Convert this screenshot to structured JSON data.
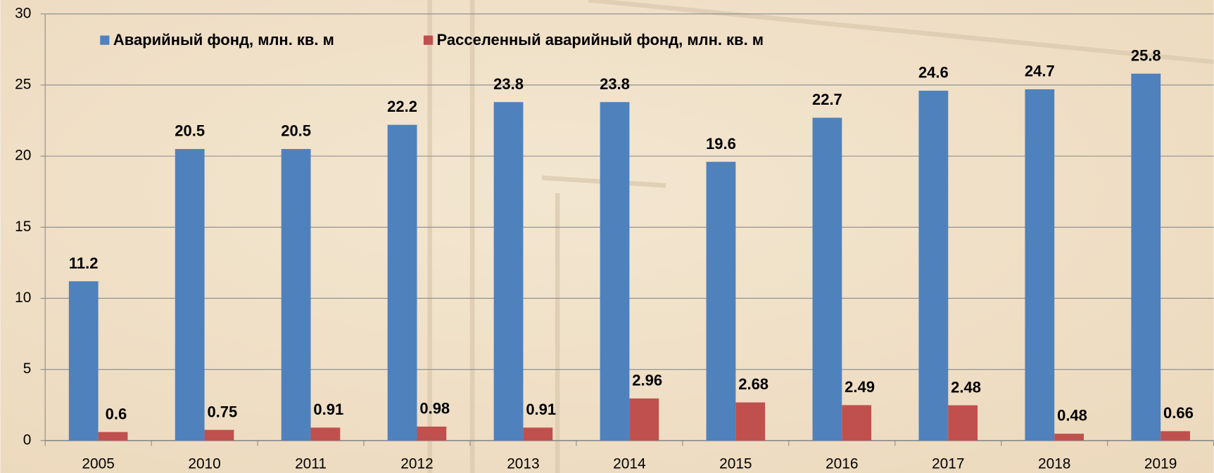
{
  "chart_data": {
    "type": "bar",
    "categories": [
      "2005",
      "2010",
      "2011",
      "2012",
      "2013",
      "2014",
      "2015",
      "2016",
      "2017",
      "2018",
      "2019"
    ],
    "series": [
      {
        "name": "Аварийный фонд, млн. кв. м",
        "color": "#4f81bd",
        "values": [
          11.2,
          20.5,
          20.5,
          22.2,
          23.8,
          23.8,
          19.6,
          22.7,
          24.6,
          24.7,
          25.8
        ]
      },
      {
        "name": "Расселенный аварийный фонд, млн. кв. м",
        "color": "#c0504d",
        "values": [
          0.6,
          0.75,
          0.91,
          0.98,
          0.91,
          2.96,
          2.68,
          2.49,
          2.48,
          0.48,
          0.66
        ]
      }
    ],
    "ylim": [
      0,
      30
    ],
    "yticks": [
      0,
      5,
      10,
      15,
      20,
      25,
      30
    ],
    "grid": true,
    "legend": "top"
  }
}
